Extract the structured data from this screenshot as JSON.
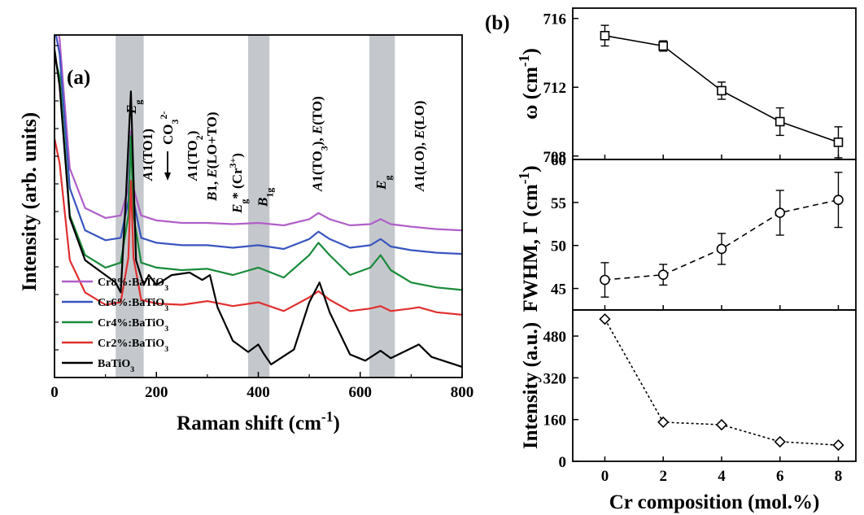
{
  "chart_data": [
    {
      "type": "line",
      "panel_label": "(a)",
      "xlabel": "Raman shift (cm-1)",
      "ylabel": "Intensity (arb. units)",
      "xlim": [
        0,
        800
      ],
      "xticks": [
        "0",
        "200",
        "400",
        "600",
        "800"
      ],
      "shaded_bands": [
        [
          120,
          175
        ],
        [
          380,
          422
        ],
        [
          618,
          668
        ]
      ],
      "annotations": [
        {
          "label": "Eg",
          "x": 150
        },
        {
          "label": "A1(TO1)",
          "x": 182
        },
        {
          "label": "CO3 2-",
          "x": 222
        },
        {
          "label": "A1(TO2)",
          "x": 270
        },
        {
          "label": "B1, E(LO+TO)",
          "x": 308
        },
        {
          "label": "Eg* (Cr3+)",
          "x": 358
        },
        {
          "label": "B1g",
          "x": 408
        },
        {
          "label": "A1(TO3), E(TO)",
          "x": 515
        },
        {
          "label": "Eg",
          "x": 640
        },
        {
          "label": "A1(LO), E(LO)",
          "x": 715
        }
      ],
      "series": [
        {
          "name": "Cr8%:BaTiO3",
          "color": "#b05fc8",
          "offset": 5.4,
          "x": [
            0,
            10,
            30,
            60,
            100,
            130,
            145,
            150,
            155,
            170,
            200,
            250,
            300,
            350,
            400,
            450,
            500,
            518,
            540,
            580,
            620,
            640,
            660,
            700,
            750,
            800
          ],
          "y": [
            9.2,
            8.0,
            2.8,
            1.2,
            0.8,
            0.9,
            2.0,
            4.3,
            2.0,
            0.9,
            0.7,
            0.6,
            0.6,
            0.55,
            0.6,
            0.5,
            0.75,
            1.0,
            0.75,
            0.5,
            0.55,
            0.75,
            0.55,
            0.45,
            0.35,
            0.3
          ]
        },
        {
          "name": "Cr6%:BaTiO3",
          "color": "#3a55c0",
          "offset": 4.4,
          "x": [
            0,
            10,
            30,
            60,
            100,
            130,
            145,
            150,
            155,
            170,
            200,
            250,
            300,
            350,
            400,
            450,
            500,
            518,
            540,
            580,
            620,
            640,
            660,
            700,
            750,
            800
          ],
          "y": [
            9.5,
            8.4,
            3.0,
            1.3,
            0.9,
            1.0,
            2.5,
            5.1,
            2.5,
            1.0,
            0.8,
            0.7,
            0.7,
            0.6,
            0.7,
            0.55,
            0.95,
            1.25,
            0.95,
            0.6,
            0.7,
            0.95,
            0.65,
            0.5,
            0.4,
            0.35
          ]
        },
        {
          "name": "Cr4%:BaTiO3",
          "color": "#1a8a3a",
          "offset": 3.1,
          "x": [
            0,
            10,
            30,
            60,
            100,
            130,
            145,
            150,
            155,
            170,
            200,
            250,
            300,
            350,
            400,
            450,
            500,
            518,
            540,
            580,
            620,
            640,
            660,
            700,
            750,
            800
          ],
          "y": [
            9.6,
            8.8,
            3.2,
            1.6,
            1.1,
            1.3,
            3.2,
            6.4,
            3.2,
            1.3,
            1.1,
            1.0,
            1.05,
            0.8,
            1.1,
            0.7,
            1.6,
            2.1,
            1.6,
            0.8,
            1.1,
            1.6,
            1.0,
            0.5,
            0.3,
            0.2
          ]
        },
        {
          "name": "Cr2%:BaTiO3",
          "color": "#e03030",
          "offset": 2.1,
          "x": [
            0,
            10,
            30,
            60,
            100,
            130,
            145,
            150,
            155,
            170,
            200,
            250,
            300,
            350,
            400,
            450,
            500,
            518,
            540,
            580,
            620,
            640,
            660,
            700,
            715,
            750,
            800
          ],
          "y": [
            7.3,
            6.3,
            2.4,
            1.1,
            0.6,
            0.7,
            2.5,
            5.6,
            2.5,
            0.8,
            0.65,
            0.6,
            0.75,
            0.55,
            0.7,
            0.35,
            0.9,
            1.15,
            0.8,
            0.35,
            0.45,
            0.55,
            0.35,
            0.45,
            0.5,
            0.3,
            0.2
          ]
        },
        {
          "name": "BaTiO3",
          "color": "#000000",
          "offset": 0,
          "x": [
            0,
            10,
            30,
            60,
            100,
            120,
            130,
            140,
            150,
            160,
            175,
            185,
            200,
            230,
            265,
            290,
            305,
            320,
            350,
            380,
            400,
            410,
            425,
            470,
            500,
            520,
            540,
            580,
            610,
            640,
            660,
            690,
            715,
            740,
            800
          ],
          "y": [
            13,
            11.5,
            6.2,
            4.5,
            3.9,
            3.6,
            3.2,
            7.0,
            11.3,
            4.5,
            3.5,
            3.9,
            3.5,
            3.9,
            4.0,
            3.7,
            3.9,
            2.6,
            1.25,
            0.8,
            1.1,
            0.75,
            0.3,
            0.9,
            2.8,
            3.6,
            2.4,
            0.7,
            0.45,
            0.85,
            0.55,
            0.85,
            1.1,
            0.6,
            0.2
          ]
        }
      ]
    },
    {
      "type": "line",
      "panel_label": "(b)",
      "xlabel": "Cr composition (mol.%)",
      "x": [
        0,
        2,
        4,
        6,
        8
      ],
      "xticks": [
        "0",
        "2",
        "4",
        "6",
        "8"
      ],
      "xlim": [
        -1.1,
        8.6
      ],
      "subplots": [
        {
          "ylabel": "ω (cm-1)",
          "ylim": [
            707.8,
            716.6
          ],
          "yticks": [
            "708",
            "712",
            "716"
          ],
          "yvals": [
            708,
            712,
            716
          ],
          "marker": "square",
          "linestyle": "solid",
          "values": [
            715.0,
            714.4,
            711.8,
            710.0,
            708.8
          ],
          "errors": [
            0.6,
            0.3,
            0.5,
            0.8,
            0.9
          ]
        },
        {
          "ylabel": "FWHM, Γ (cm-1)",
          "ylim": [
            42.5,
            60
          ],
          "yticks": [
            "45",
            "50",
            "55",
            "60"
          ],
          "yvals": [
            45,
            50,
            55,
            60
          ],
          "marker": "circle",
          "linestyle": "dashed",
          "values": [
            46.0,
            46.6,
            49.6,
            53.8,
            55.3
          ],
          "errors": [
            2.0,
            1.2,
            1.8,
            2.6,
            3.2
          ]
        },
        {
          "ylabel": "Intensity (a.u.)",
          "ylim": [
            0,
            580
          ],
          "yticks": [
            "0",
            "160",
            "320",
            "480"
          ],
          "yvals": [
            0,
            160,
            320,
            480
          ],
          "marker": "diamond",
          "linestyle": "dotted",
          "values": [
            545,
            150,
            140,
            75,
            62
          ],
          "errors": [
            0,
            0,
            0,
            0,
            0
          ]
        }
      ]
    }
  ]
}
